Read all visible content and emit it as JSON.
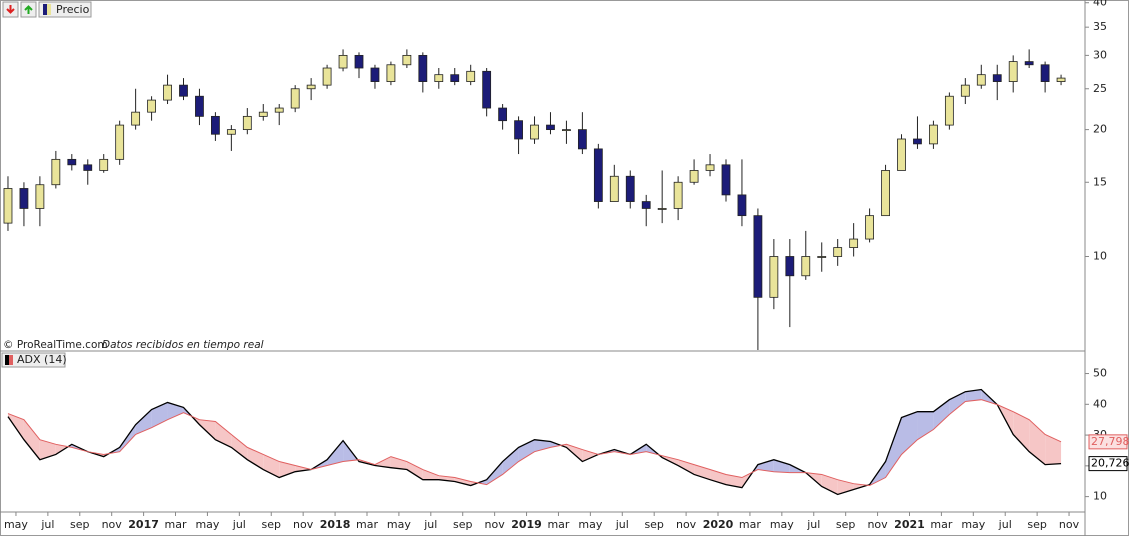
{
  "source": "© ProRealTime.com",
  "note": "Datos recibidos en tiempo real",
  "chart_data": [
    {
      "type": "candlestick",
      "title": "Precio",
      "log_scale": true,
      "up_color": "#e9e49a",
      "down_color": "#1c1c78",
      "xlim": [
        "2016-04",
        "2021-12"
      ],
      "ylim": [
        6,
        40.6
      ],
      "yticks": [
        10,
        15,
        20,
        25,
        30,
        35,
        40
      ],
      "x": [
        "2016-04",
        "2016-05",
        "2016-06",
        "2016-07",
        "2016-08",
        "2016-09",
        "2016-10",
        "2016-11",
        "2016-12",
        "2017-01",
        "2017-02",
        "2017-03",
        "2017-04",
        "2017-05",
        "2017-06",
        "2017-07",
        "2017-08",
        "2017-09",
        "2017-10",
        "2017-11",
        "2017-12",
        "2018-01",
        "2018-02",
        "2018-03",
        "2018-04",
        "2018-05",
        "2018-06",
        "2018-07",
        "2018-08",
        "2018-09",
        "2018-10",
        "2018-11",
        "2018-12",
        "2019-01",
        "2019-02",
        "2019-03",
        "2019-04",
        "2019-05",
        "2019-06",
        "2019-07",
        "2019-08",
        "2019-09",
        "2019-10",
        "2019-11",
        "2019-12",
        "2020-01",
        "2020-02",
        "2020-03",
        "2020-04",
        "2020-05",
        "2020-06",
        "2020-07",
        "2020-08",
        "2020-09",
        "2020-10",
        "2020-11",
        "2020-12",
        "2021-01",
        "2021-02",
        "2021-03",
        "2021-04",
        "2021-05",
        "2021-06",
        "2021-07",
        "2021-08",
        "2021-09",
        "2021-10"
      ],
      "open": [
        12,
        14.5,
        13,
        14.8,
        17,
        16.5,
        16,
        17,
        20.5,
        22,
        23.5,
        25.5,
        24,
        21.5,
        19.5,
        20,
        21.5,
        22,
        22.5,
        25,
        25.5,
        28,
        30,
        28,
        26,
        28.5,
        30,
        26,
        27,
        26,
        27.5,
        22.5,
        21,
        19,
        20.5,
        20,
        20,
        18,
        13.5,
        15.5,
        13.5,
        13,
        13,
        15,
        16,
        16.5,
        14,
        12.5,
        8,
        10,
        9,
        10,
        10,
        10.5,
        11,
        12.5,
        16,
        19,
        18.5,
        20.5,
        24,
        25.5,
        27,
        26,
        29,
        28.5,
        26
      ],
      "high": [
        15.5,
        15,
        15.5,
        17.8,
        17.5,
        17,
        17.5,
        21,
        25,
        24,
        27,
        26.5,
        25,
        22,
        20.5,
        22.5,
        23,
        23,
        25.5,
        26.5,
        28.5,
        31,
        30.5,
        28.5,
        29,
        31,
        30.5,
        28,
        28,
        28.5,
        28,
        23,
        21.5,
        21.5,
        22,
        21,
        22,
        18.5,
        16.5,
        16,
        14,
        16,
        15.5,
        17,
        17.5,
        17,
        17,
        13,
        11,
        11,
        11.5,
        10.8,
        11,
        12,
        13,
        16.5,
        19.5,
        21.5,
        21,
        24.5,
        26.5,
        28.5,
        28.5,
        30,
        31,
        29,
        27
      ],
      "low": [
        11.5,
        11.8,
        11.8,
        14.5,
        16,
        14.8,
        15.8,
        16.5,
        20,
        21,
        23,
        23.5,
        20.5,
        18.8,
        17.8,
        19.5,
        21,
        20.5,
        22,
        23.5,
        25,
        27.5,
        26.5,
        25,
        25.5,
        28,
        24.5,
        25,
        25.5,
        25.5,
        21.5,
        20,
        17.5,
        18.5,
        19.5,
        18.5,
        17.5,
        13,
        13.5,
        13,
        11.8,
        12,
        12.2,
        14.8,
        15.5,
        13.5,
        11.8,
        6,
        7.5,
        6.8,
        8.8,
        9.2,
        9.5,
        10,
        10.8,
        12.5,
        16,
        18,
        18,
        20,
        23,
        25,
        23.5,
        24.5,
        28,
        24.5,
        25.5
      ],
      "close": [
        14.5,
        13,
        14.8,
        17,
        16.5,
        16,
        17,
        20.5,
        22,
        23.5,
        25.5,
        24,
        21.5,
        19.5,
        20,
        21.5,
        22,
        22.5,
        25,
        25.5,
        28,
        30,
        28,
        26,
        28.5,
        30,
        26,
        27,
        26,
        27.5,
        22.5,
        21,
        19,
        20.5,
        20,
        20,
        18,
        13.5,
        15.5,
        13.5,
        13,
        13,
        15,
        16,
        16.5,
        14,
        12.5,
        8,
        10,
        9,
        10,
        10,
        10.5,
        11,
        12.5,
        16,
        19,
        18.5,
        20.5,
        24,
        25.5,
        27,
        26,
        29,
        28.5,
        26,
        26.5
      ]
    },
    {
      "type": "line",
      "title": "ADX (14)",
      "fill_between": true,
      "fill_above": "#b9bce6",
      "fill_below": "#f6c6c6",
      "xlim": [
        "2016-04",
        "2021-12"
      ],
      "xticks": [
        {
          "value": "2016-05",
          "label": "may"
        },
        {
          "value": "2016-07",
          "label": "jul"
        },
        {
          "value": "2016-09",
          "label": "sep"
        },
        {
          "value": "2016-11",
          "label": "nov"
        },
        {
          "value": "2017-01",
          "label": "2017"
        },
        {
          "value": "2017-03",
          "label": "mar"
        },
        {
          "value": "2017-05",
          "label": "may"
        },
        {
          "value": "2017-07",
          "label": "jul"
        },
        {
          "value": "2017-09",
          "label": "sep"
        },
        {
          "value": "2017-11",
          "label": "nov"
        },
        {
          "value": "2018-01",
          "label": "2018"
        },
        {
          "value": "2018-03",
          "label": "mar"
        },
        {
          "value": "2018-05",
          "label": "may"
        },
        {
          "value": "2018-07",
          "label": "jul"
        },
        {
          "value": "2018-09",
          "label": "sep"
        },
        {
          "value": "2018-11",
          "label": "nov"
        },
        {
          "value": "2019-01",
          "label": "2019"
        },
        {
          "value": "2019-03",
          "label": "mar"
        },
        {
          "value": "2019-05",
          "label": "may"
        },
        {
          "value": "2019-07",
          "label": "jul"
        },
        {
          "value": "2019-09",
          "label": "sep"
        },
        {
          "value": "2019-11",
          "label": "nov"
        },
        {
          "value": "2020-01",
          "label": "2020"
        },
        {
          "value": "2020-03",
          "label": "mar"
        },
        {
          "value": "2020-05",
          "label": "may"
        },
        {
          "value": "2020-07",
          "label": "jul"
        },
        {
          "value": "2020-09",
          "label": "sep"
        },
        {
          "value": "2020-11",
          "label": "nov"
        },
        {
          "value": "2021-01",
          "label": "2021"
        },
        {
          "value": "2021-03",
          "label": "mar"
        },
        {
          "value": "2021-05",
          "label": "may"
        },
        {
          "value": "2021-07",
          "label": "jul"
        },
        {
          "value": "2021-09",
          "label": "sep"
        },
        {
          "value": "2021-11",
          "label": "nov"
        }
      ],
      "ylim": [
        5,
        57
      ],
      "yticks": [
        10,
        20,
        30,
        40,
        50
      ],
      "x": [
        "2016-04",
        "2016-05",
        "2016-06",
        "2016-07",
        "2016-08",
        "2016-09",
        "2016-10",
        "2016-11",
        "2016-12",
        "2017-01",
        "2017-02",
        "2017-03",
        "2017-04",
        "2017-05",
        "2017-06",
        "2017-07",
        "2017-08",
        "2017-09",
        "2017-10",
        "2017-11",
        "2017-12",
        "2018-01",
        "2018-02",
        "2018-03",
        "2018-04",
        "2018-05",
        "2018-06",
        "2018-07",
        "2018-08",
        "2018-09",
        "2018-10",
        "2018-11",
        "2018-12",
        "2019-01",
        "2019-02",
        "2019-03",
        "2019-04",
        "2019-05",
        "2019-06",
        "2019-07",
        "2019-08",
        "2019-09",
        "2019-10",
        "2019-11",
        "2019-12",
        "2020-01",
        "2020-02",
        "2020-03",
        "2020-04",
        "2020-05",
        "2020-06",
        "2020-07",
        "2020-08",
        "2020-09",
        "2020-10",
        "2020-11",
        "2020-12",
        "2021-01",
        "2021-02",
        "2021-03",
        "2021-04",
        "2021-05",
        "2021-06",
        "2021-07",
        "2021-08",
        "2021-09",
        "2021-10"
      ],
      "series": [
        {
          "color": "#000000",
          "label_bg": "#ffffff",
          "values": [
            36,
            28.5,
            22,
            23.7,
            27,
            24.6,
            23,
            26,
            33.4,
            38.3,
            40.6,
            39,
            33.4,
            28.5,
            26,
            22,
            18.8,
            16.2,
            18.1,
            18.8,
            22,
            28.2,
            21.4,
            20.1,
            19.4,
            18.8,
            15.5,
            15.5,
            14.9,
            13.6,
            15.5,
            21.4,
            26,
            28.5,
            27.9,
            26,
            21.4,
            23.7,
            25.3,
            23.7,
            27,
            22.7,
            20.1,
            17.2,
            15.5,
            13.9,
            12.9,
            20.4,
            22,
            20.4,
            17.8,
            13.3,
            10.7,
            12.3,
            13.9,
            21.4,
            35.7,
            37.6,
            37.6,
            41.5,
            44.1,
            44.8,
            39.9,
            30.2,
            24.6,
            20.4,
            20.726
          ],
          "value_labels": [
            null,
            null,
            null,
            null,
            null,
            null,
            null,
            null,
            null,
            null,
            null,
            null,
            null,
            null,
            null,
            null,
            null,
            null,
            null,
            null,
            null,
            null,
            null,
            null,
            null,
            null,
            null,
            null,
            null,
            null,
            null,
            null,
            null,
            null,
            null,
            null,
            null,
            null,
            null,
            null,
            null,
            null,
            null,
            null,
            null,
            null,
            null,
            null,
            null,
            null,
            null,
            null,
            null,
            null,
            null,
            null,
            null,
            null,
            null,
            null,
            null,
            null,
            null,
            null,
            null,
            null,
            "20,726"
          ]
        },
        {
          "color": "#e06060",
          "label_bg": "#fbe0e0",
          "values": [
            37,
            35,
            28.5,
            27,
            26,
            24.6,
            23.7,
            24.6,
            30.2,
            32.4,
            35,
            37.3,
            35,
            34.4,
            30.2,
            26,
            23.7,
            21.4,
            20.1,
            18.8,
            20.1,
            21.4,
            22,
            20.4,
            23,
            21.4,
            18.8,
            16.8,
            16.2,
            14.9,
            13.9,
            17.2,
            21.4,
            24.6,
            26,
            27,
            25.3,
            23.7,
            24.6,
            23.7,
            24.6,
            23.3,
            22,
            20.4,
            18.8,
            17.2,
            16.2,
            18.8,
            18.1,
            17.8,
            17.8,
            17.2,
            15.5,
            14.2,
            13.6,
            16.2,
            23.7,
            28.5,
            31.8,
            36.7,
            40.9,
            41.5,
            39.9,
            37.6,
            35,
            30.2,
            27.798
          ],
          "value_labels": [
            null,
            null,
            null,
            null,
            null,
            null,
            null,
            null,
            null,
            null,
            null,
            null,
            null,
            null,
            null,
            null,
            null,
            null,
            null,
            null,
            null,
            null,
            null,
            null,
            null,
            null,
            null,
            null,
            null,
            null,
            null,
            null,
            null,
            null,
            null,
            null,
            null,
            null,
            null,
            null,
            null,
            null,
            null,
            null,
            null,
            null,
            null,
            null,
            null,
            null,
            null,
            null,
            null,
            null,
            null,
            null,
            null,
            null,
            null,
            null,
            null,
            null,
            null,
            null,
            null,
            null,
            "27,798"
          ]
        }
      ]
    }
  ]
}
